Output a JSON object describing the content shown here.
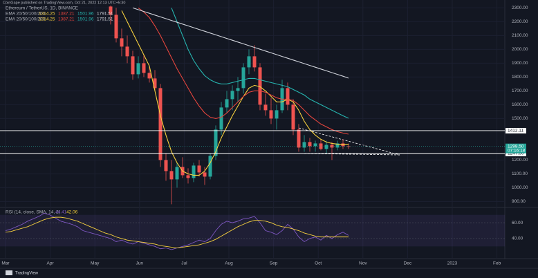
{
  "header": "CoinGape published on TradingView.com, Oct 21, 2022 12:13 UTC+5:30",
  "footer": "TradingView",
  "chart_data": [
    {
      "type": "candlestick",
      "title": "Ethereum / TetherUS, 1D, BINANCE",
      "legend": [
        "EMA 20/50/100/200",
        "1314.25",
        "1387.21",
        "1501.96",
        "1791.51"
      ],
      "legend_repeat": [
        "EMA 20/50/100/200",
        "1314.25",
        "1387.21",
        "1501.96",
        "1791.51"
      ],
      "up_color": "#26a69a",
      "down_color": "#ef5350",
      "open": [
        2310,
        2250,
        2080,
        2020,
        1950,
        1820,
        1900,
        1830,
        1790,
        1720,
        1200,
        1120,
        1060,
        1150,
        1090,
        1070,
        1160,
        1110,
        1080,
        1230,
        1420,
        1580,
        1640,
        1700,
        1720,
        1870,
        1950,
        1870,
        1600,
        1560,
        1500,
        1560,
        1720,
        1600,
        1420,
        1290,
        1330,
        1300,
        1320,
        1280,
        1310,
        1290,
        1320,
        1300
      ],
      "high": [
        2317,
        2300,
        2150,
        2100,
        1990,
        1950,
        1960,
        1880,
        1850,
        1750,
        1250,
        1200,
        1180,
        1220,
        1140,
        1180,
        1200,
        1150,
        1250,
        1450,
        1620,
        1700,
        1740,
        1800,
        1900,
        2000,
        2030,
        1900,
        1680,
        1650,
        1600,
        1780,
        1760,
        1640,
        1460,
        1380,
        1360,
        1340,
        1350,
        1340,
        1330,
        1340,
        1350,
        1320
      ],
      "low": [
        2180,
        2050,
        1950,
        1900,
        1780,
        1790,
        1800,
        1760,
        1700,
        1150,
        1050,
        880,
        1000,
        1070,
        1030,
        1040,
        1080,
        1020,
        1060,
        1200,
        1380,
        1540,
        1560,
        1620,
        1680,
        1820,
        1840,
        1560,
        1520,
        1460,
        1420,
        1540,
        1560,
        1380,
        1260,
        1260,
        1260,
        1260,
        1270,
        1250,
        1200,
        1270,
        1280,
        1280
      ],
      "close": [
        2250,
        2080,
        2020,
        1950,
        1820,
        1900,
        1830,
        1790,
        1720,
        1200,
        1120,
        1060,
        1150,
        1090,
        1070,
        1160,
        1110,
        1080,
        1230,
        1420,
        1580,
        1640,
        1700,
        1720,
        1870,
        1950,
        1870,
        1600,
        1560,
        1500,
        1560,
        1720,
        1600,
        1420,
        1290,
        1330,
        1300,
        1320,
        1280,
        1310,
        1290,
        1320,
        1300,
        1298.5
      ],
      "series": [
        {
          "color": "#f7d13e",
          "values": [
            null,
            null,
            2280,
            2200,
            2120,
            2040,
            1960,
            1880,
            1700,
            1520,
            1380,
            1260,
            1180,
            1120,
            1100,
            1090,
            1090,
            1120,
            1180,
            1260,
            1360,
            1440,
            1520,
            1590,
            1660,
            1720,
            1740,
            1730,
            1700,
            1660,
            1620,
            1620,
            1640,
            1620,
            1560,
            1480,
            1420,
            1380,
            1350,
            1330,
            1320,
            1315,
            1314,
            1314
          ]
        },
        {
          "color": "#e5453d",
          "values": [
            null,
            null,
            null,
            null,
            null,
            2300,
            2270,
            2230,
            2170,
            2100,
            2020,
            1940,
            1860,
            1790,
            1720,
            1650,
            1590,
            1540,
            1510,
            1500,
            1510,
            1540,
            1580,
            1620,
            1660,
            1690,
            1700,
            1700,
            1690,
            1670,
            1650,
            1640,
            1640,
            1630,
            1600,
            1560,
            1520,
            1490,
            1460,
            1440,
            1420,
            1405,
            1395,
            1387
          ]
        },
        {
          "color": "#26b5b0",
          "values": [
            null,
            null,
            null,
            null,
            null,
            null,
            null,
            null,
            null,
            null,
            null,
            2300,
            2200,
            2100,
            2000,
            1920,
            1860,
            1810,
            1780,
            1760,
            1750,
            1750,
            1760,
            1770,
            1780,
            1790,
            1790,
            1780,
            1770,
            1760,
            1750,
            1740,
            1730,
            1710,
            1690,
            1670,
            1640,
            1620,
            1600,
            1580,
            1560,
            1540,
            1520,
            1502
          ]
        },
        {
          "color": "#d1d4dc",
          "values": [
            null,
            null,
            null,
            null,
            2300,
            2287,
            2274,
            2261,
            2248,
            2235,
            2222,
            2209,
            2196,
            2183,
            2170,
            2157,
            2144,
            2131,
            2118,
            2105,
            2092,
            2079,
            2066,
            2053,
            2040,
            2027,
            2014,
            2001,
            1988,
            1975,
            1962,
            1949,
            1936,
            1923,
            1910,
            1897,
            1884,
            1871,
            1858,
            1845,
            1832,
            1819,
            1806,
            1792
          ]
        }
      ],
      "ylim": [
        857,
        2317
      ],
      "yticks": [
        {
          "value": 2300,
          "label": "2300.00"
        },
        {
          "value": 2200,
          "label": "2200.00"
        },
        {
          "value": 2100,
          "label": "2100.00"
        },
        {
          "value": 2000,
          "label": "2000.00"
        },
        {
          "value": 1900,
          "label": "1900.00"
        },
        {
          "value": 1800,
          "label": "1800.00"
        },
        {
          "value": 1700,
          "label": "1700.00"
        },
        {
          "value": 1600,
          "label": "1600.00"
        },
        {
          "value": 1500,
          "label": "1500.00"
        },
        {
          "value": 1200,
          "label": "1200.00"
        },
        {
          "value": 1100,
          "label": "1100.00"
        },
        {
          "value": 1000,
          "label": "1000.00"
        },
        {
          "value": 900,
          "label": "900.00"
        }
      ],
      "levels": [
        1412.11,
        {
          "value": 1247.6,
          "label": "1247.60"
        }
      ],
      "last": {
        "value": 1298.5,
        "label": "1298.50"
      },
      "countdown": "07:16:18",
      "months": [
        "Mar",
        "Apr",
        "May",
        "Jun",
        "Jul",
        "Aug",
        "Sep",
        "Oct",
        "Nov",
        "Dec",
        "2023",
        "Feb"
      ]
    },
    {
      "type": "line",
      "title": "RSI (14, close, SMA, 14, 2)",
      "title_values": [
        "44.41",
        "42.06"
      ],
      "series": [
        {
          "color": "#7e57c2",
          "values": [
            50,
            52,
            55,
            58,
            62,
            65,
            68,
            72,
            70,
            66,
            62,
            60,
            58,
            55,
            50,
            48,
            46,
            44,
            42,
            40,
            36,
            38,
            35,
            33,
            36,
            34,
            32,
            30,
            27,
            28,
            26,
            28,
            30,
            32,
            35,
            38,
            36,
            40,
            50,
            58,
            62,
            60,
            62,
            65,
            66,
            68,
            60,
            50,
            48,
            45,
            50,
            58,
            52,
            42,
            36,
            40,
            42,
            38,
            44,
            40,
            45,
            48,
            44
          ]
        },
        {
          "color": "#f7d13e",
          "values": [
            48,
            49,
            51,
            53,
            55,
            58,
            61,
            64,
            66,
            67,
            67,
            66,
            64,
            62,
            59,
            56,
            53,
            50,
            47,
            45,
            42,
            40,
            38,
            37,
            36,
            35,
            34,
            33,
            31,
            30,
            29,
            28,
            29,
            30,
            31,
            32,
            34,
            36,
            39,
            43,
            47,
            51,
            55,
            58,
            61,
            63,
            63,
            62,
            60,
            57,
            55,
            54,
            52,
            50,
            47,
            45,
            43,
            42,
            42,
            42,
            42,
            42,
            42
          ]
        }
      ],
      "band": [
        30,
        70
      ],
      "ylim": [
        18,
        75
      ],
      "yticks": [
        {
          "value": 40,
          "label": "40.00"
        },
        {
          "value": 60,
          "label": "60.00"
        }
      ]
    }
  ]
}
